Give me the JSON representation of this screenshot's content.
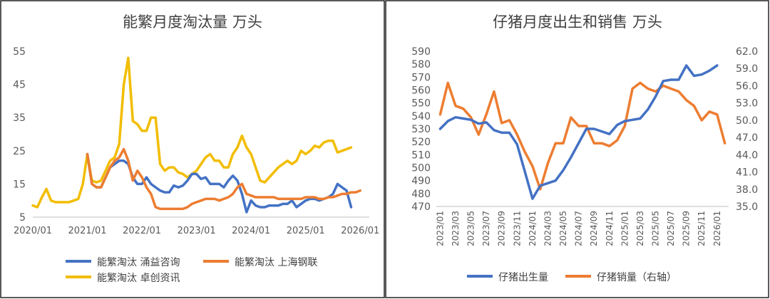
{
  "chart_data": [
    {
      "type": "line",
      "title": "能繁月度淘汰量 万头",
      "xlabel": "",
      "ylabel": "",
      "x_ticks": [
        "2020/01",
        "2021/01",
        "2022/01",
        "2023/01",
        "2024/01",
        "2025/01",
        "2026/01"
      ],
      "y_ticks": [
        "5",
        "15",
        "25",
        "35",
        "45",
        "55"
      ],
      "ylim": [
        5,
        55
      ],
      "xlim": [
        0,
        74
      ],
      "grid": false,
      "legend_position": "bottom",
      "series": [
        {
          "name": "能繁淘汰 涌益咨询",
          "color": "#4472C4",
          "start_index": 12,
          "values": [
            24,
            15,
            14,
            14,
            17,
            20,
            21,
            22,
            22,
            21,
            17,
            15,
            15,
            17,
            15,
            14,
            13,
            12.5,
            12.5,
            14.5,
            14,
            14.5,
            16,
            18,
            18,
            16.5,
            17,
            15,
            15,
            15,
            14,
            16,
            17.5,
            16,
            12,
            6.5,
            10,
            8.5,
            8,
            8,
            8.5,
            8.5,
            8.5,
            9,
            9,
            10,
            8,
            9,
            10,
            10.5,
            10.5,
            10,
            10.5,
            11,
            12,
            15,
            14,
            13,
            8
          ]
        },
        {
          "name": "能繁淘汰 上海钢联",
          "color": "#ED7D31",
          "start_index": 12,
          "values": [
            24,
            15,
            14,
            14,
            17,
            20,
            22,
            23,
            25.5,
            22,
            16,
            19,
            17,
            14,
            12,
            8,
            7.5,
            7.5,
            7.5,
            7.5,
            7.5,
            7.5,
            8,
            9,
            9.5,
            10,
            10.5,
            10.5,
            10.5,
            10,
            10.5,
            11,
            12,
            14,
            15,
            12,
            11.5,
            11,
            11,
            11,
            11,
            11,
            10.5,
            10.5,
            10.5,
            10.5,
            10.5,
            10.5,
            11,
            11,
            11,
            10.5,
            10.5,
            11,
            11,
            11.5,
            12,
            12,
            12.5,
            12.5,
            13
          ]
        },
        {
          "name": "能繁淘汰 卓创资讯",
          "color": "#F2BD00",
          "start_index": 0,
          "values": [
            8.5,
            8,
            11,
            13.5,
            10,
            9.5,
            9.5,
            9.5,
            9.5,
            10,
            10.5,
            15,
            24,
            16,
            15.5,
            16,
            19,
            22,
            23,
            27,
            45,
            53,
            34,
            33,
            31,
            31,
            35,
            35,
            21,
            19,
            20,
            20,
            18.5,
            18,
            17,
            18,
            19,
            21,
            23,
            24,
            22,
            22,
            20,
            20,
            24,
            26,
            29.5,
            26,
            24,
            20,
            16,
            15.5,
            17,
            18.5,
            20,
            21,
            22,
            21,
            22,
            25,
            24,
            25,
            26.5,
            26,
            27.5,
            28,
            28,
            24.5,
            25,
            25.5,
            26
          ]
        }
      ],
      "legend": [
        "能繁淘汰 涌益咨询",
        "能繁淘汰 上海钢联",
        "能繁淘汰 卓创资讯"
      ]
    },
    {
      "type": "line",
      "title": "仔猪月度出生和销售 万头",
      "xlabel": "",
      "ylabel": "",
      "x_ticks": [
        "2023/01",
        "2023/03",
        "2023/05",
        "2023/07",
        "2023/09",
        "2023/11",
        "2024/01",
        "2024/03",
        "2024/05",
        "2024/07",
        "2024/09",
        "2024/11",
        "2025/01",
        "2025/03",
        "2025/05",
        "2025/07",
        "2025/09",
        "2025/11",
        "2026/01"
      ],
      "y_ticks_left": [
        "470",
        "480",
        "490",
        "500",
        "510",
        "520",
        "530",
        "540",
        "550",
        "560",
        "570",
        "580",
        "590"
      ],
      "y_ticks_right": [
        "35.0",
        "38.0",
        "41.0",
        "44.0",
        "47.0",
        "50.0",
        "53.0",
        "56.0",
        "59.0",
        "62.0"
      ],
      "ylim_left": [
        470,
        590
      ],
      "ylim_right": [
        35,
        62
      ],
      "grid": false,
      "legend_position": "bottom",
      "series": [
        {
          "name": "仔猪出生量",
          "axis": "left",
          "color": "#4472C4",
          "values": [
            530,
            536,
            539,
            538,
            537,
            534,
            535,
            529,
            527,
            527,
            518,
            497,
            476,
            486,
            488,
            490,
            498,
            508,
            519,
            530,
            530,
            528,
            526,
            533,
            536,
            537,
            538,
            545,
            555,
            567,
            568,
            568,
            579,
            571,
            572,
            575,
            579
          ]
        },
        {
          "name": "仔猪销量（右轴）",
          "axis": "right",
          "color": "#ED7D31",
          "values": [
            51,
            56.5,
            52.5,
            52,
            50.5,
            47.5,
            51,
            55,
            49.5,
            50,
            47.5,
            44.5,
            42,
            38,
            42.5,
            46,
            46,
            50.5,
            49,
            49,
            46,
            46,
            45.5,
            46.5,
            49,
            55.5,
            56.5,
            55.5,
            55,
            56,
            55.5,
            55,
            53.5,
            52.5,
            50,
            51.5,
            51,
            46
          ]
        }
      ],
      "legend": [
        "仔猪出生量",
        "仔猪销量（右轴）"
      ]
    }
  ]
}
